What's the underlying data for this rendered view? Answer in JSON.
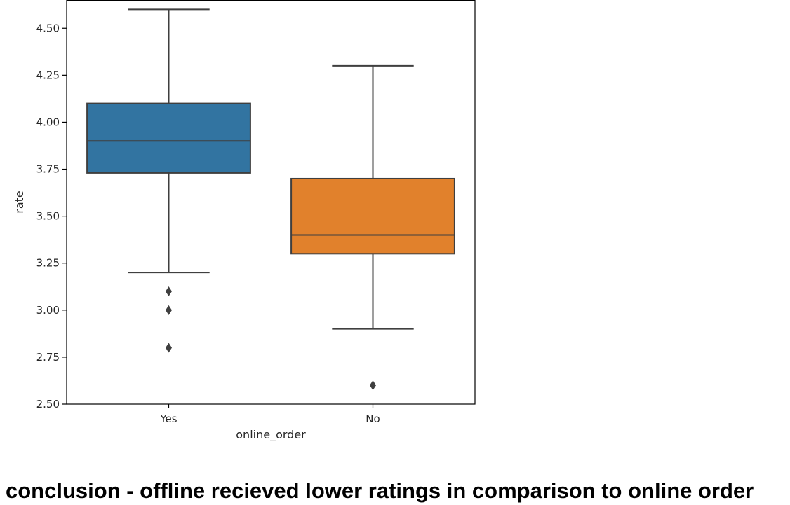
{
  "chart_data": {
    "type": "box",
    "xlabel": "online_order",
    "ylabel": "rate",
    "ylim": [
      2.5,
      4.65
    ],
    "yticks": [
      2.5,
      2.75,
      3.0,
      3.25,
      3.5,
      3.75,
      4.0,
      4.25,
      4.5
    ],
    "ytick_labels": [
      "2.50",
      "2.75",
      "3.00",
      "3.25",
      "3.50",
      "3.75",
      "4.00",
      "4.25",
      "4.50"
    ],
    "categories": [
      "Yes",
      "No"
    ],
    "boxes": [
      {
        "category": "Yes",
        "whisker_low": 3.2,
        "q1": 3.73,
        "median": 3.9,
        "q3": 4.1,
        "whisker_high": 4.6,
        "outliers": [
          3.1,
          3.0,
          2.8
        ],
        "color": "#3274a1"
      },
      {
        "category": "No",
        "whisker_low": 2.9,
        "q1": 3.3,
        "median": 3.4,
        "q3": 3.7,
        "whisker_high": 4.3,
        "outliers": [
          2.6
        ],
        "color": "#e1812c"
      }
    ],
    "grid": false,
    "legend": "none"
  },
  "conclusion": "conclusion - offline recieved lower ratings in comparison to online order"
}
